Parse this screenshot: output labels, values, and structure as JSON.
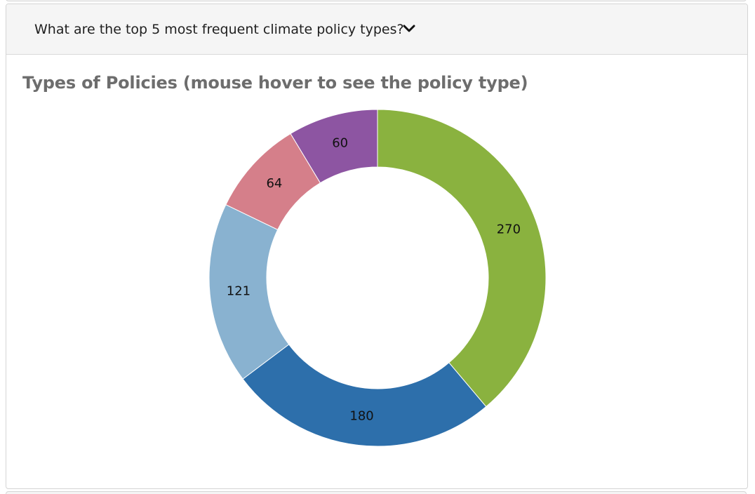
{
  "accordion": {
    "question": "What are the top 5 most frequent climate policy types?",
    "expanded": true,
    "icon": "chevron-down-icon"
  },
  "chart_data": {
    "type": "pie",
    "title": "Types of Policies (mouse hover to see the policy type)",
    "donut": true,
    "slices": [
      {
        "value": 270,
        "label": "270",
        "color": "#8ab23f"
      },
      {
        "value": 180,
        "label": "180",
        "color": "#2d6fab"
      },
      {
        "value": 121,
        "label": "121",
        "color": "#89b2d0"
      },
      {
        "value": 64,
        "label": "64",
        "color": "#d57f8a"
      },
      {
        "value": 60,
        "label": "60",
        "color": "#8d55a2"
      }
    ],
    "start_angle_deg": 0,
    "direction": "clockwise"
  }
}
